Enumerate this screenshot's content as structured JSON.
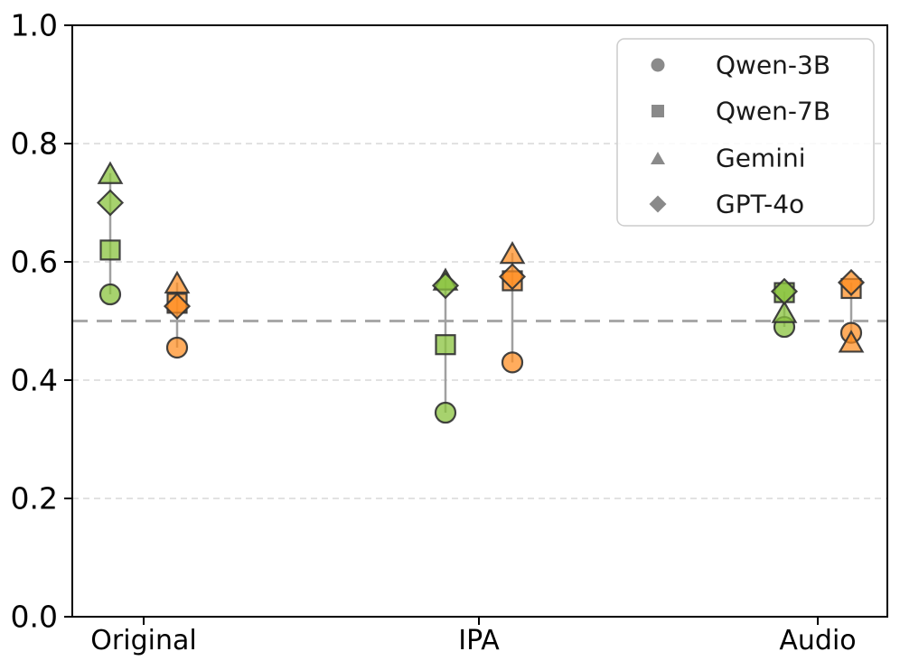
{
  "chart_data": {
    "type": "scatter",
    "title": "",
    "xlabel": "",
    "ylabel": "",
    "categories": [
      "Original",
      "IPA",
      "Audio"
    ],
    "ylim": [
      0.0,
      1.0
    ],
    "yticks": [
      "0.0",
      "0.2",
      "0.4",
      "0.6",
      "0.8",
      "1.0"
    ],
    "ytick_values": [
      0.0,
      0.2,
      0.4,
      0.6,
      0.8,
      1.0
    ],
    "gridline_values": [
      0.2,
      0.4,
      0.6,
      0.8
    ],
    "chance_line_value": 0.5,
    "grid": "horizontal dashed",
    "legend_position": "upper right",
    "legend": [
      {
        "label": "Qwen-3B",
        "marker": "circle"
      },
      {
        "label": "Qwen-7B",
        "marker": "square"
      },
      {
        "label": "Gemini",
        "marker": "triangle"
      },
      {
        "label": "GPT-4o",
        "marker": "diamond"
      }
    ],
    "marker_to_model": {
      "circle": "Qwen-3B",
      "square": "Qwen-7B",
      "triangle": "Gemini",
      "diamond": "GPT-4o"
    },
    "series": [
      {
        "name": "green",
        "color": "#8ac33e",
        "points": [
          {
            "category": "Original",
            "circle": 0.545,
            "square": 0.62,
            "triangle": 0.75,
            "diamond": 0.7
          },
          {
            "category": "IPA",
            "circle": 0.345,
            "square": 0.46,
            "triangle": 0.57,
            "diamond": 0.56
          },
          {
            "category": "Audio",
            "circle": 0.49,
            "square": 0.548,
            "triangle": 0.515,
            "diamond": 0.55
          }
        ]
      },
      {
        "name": "orange",
        "color": "#ff8c1f",
        "points": [
          {
            "category": "Original",
            "circle": 0.455,
            "square": 0.53,
            "triangle": 0.565,
            "diamond": 0.525
          },
          {
            "category": "IPA",
            "circle": 0.43,
            "square": 0.568,
            "triangle": 0.615,
            "diamond": 0.575
          },
          {
            "category": "Audio",
            "circle": 0.48,
            "square": 0.555,
            "triangle": 0.465,
            "diamond": 0.565
          }
        ]
      }
    ]
  },
  "colors": {
    "green_fill": "#8ac33e",
    "orange_fill": "#ff8c1f",
    "marker_edge": "#333333",
    "connector_line": "#a0a0a0",
    "chance_line": "#a8a8a8",
    "gridline": "#d9d9d9",
    "axis": "#000000",
    "legend_border": "#cccccc",
    "legend_marker": "#8a8a8a",
    "text": "#000000"
  }
}
